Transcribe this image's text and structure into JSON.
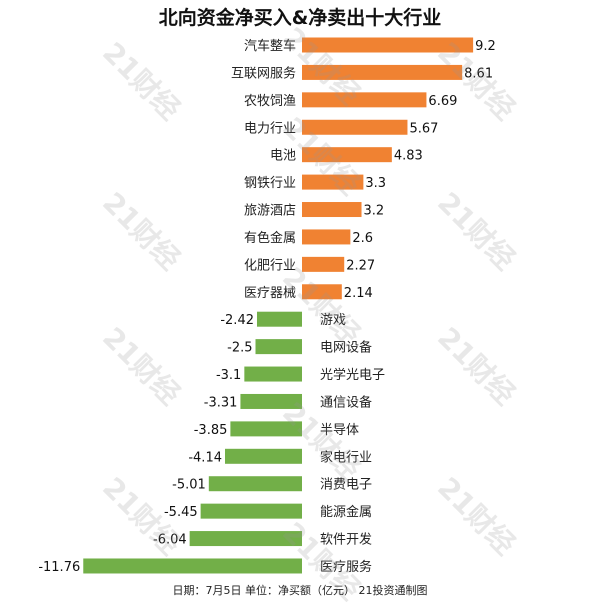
{
  "title": "北向资金净买入&净卖出十大行业",
  "footer": "日期：7月5日 单位：净买额（亿元） 21投资通制图",
  "watermark": "21财经",
  "colors": {
    "positive": "#F08232",
    "negative": "#72AF48"
  },
  "chart_data": {
    "type": "bar",
    "orientation": "horizontal",
    "title": "北向资金净买入&净卖出十大行业",
    "xlabel": "",
    "ylabel": "",
    "unit": "亿元",
    "xlim": [
      -11.76,
      9.2
    ],
    "grid": false,
    "legend": "none",
    "categories": [
      "汽车整车",
      "互联网服务",
      "农牧饲渔",
      "电力行业",
      "电池",
      "钢铁行业",
      "旅游酒店",
      "有色金属",
      "化肥行业",
      "医疗器械",
      "游戏",
      "电网设备",
      "光学光电子",
      "通信设备",
      "半导体",
      "家电行业",
      "消费电子",
      "能源金属",
      "软件开发",
      "医疗服务"
    ],
    "values": [
      9.2,
      8.61,
      6.69,
      5.67,
      4.83,
      3.3,
      3.2,
      2.6,
      2.27,
      2.14,
      -2.42,
      -2.5,
      -3.1,
      -3.31,
      -3.85,
      -4.14,
      -5.01,
      -5.45,
      -6.04,
      -11.76
    ],
    "value_labels": [
      "9.2",
      "8.61",
      "6.69",
      "5.67",
      "4.83",
      "3.3",
      "3.2",
      "2.6",
      "2.27",
      "2.14",
      "-2.42",
      "-2.5",
      "-3.1",
      "-3.31",
      "-3.85",
      "-4.14",
      "-5.01",
      "-5.45",
      "-6.04",
      "-11.76"
    ]
  }
}
